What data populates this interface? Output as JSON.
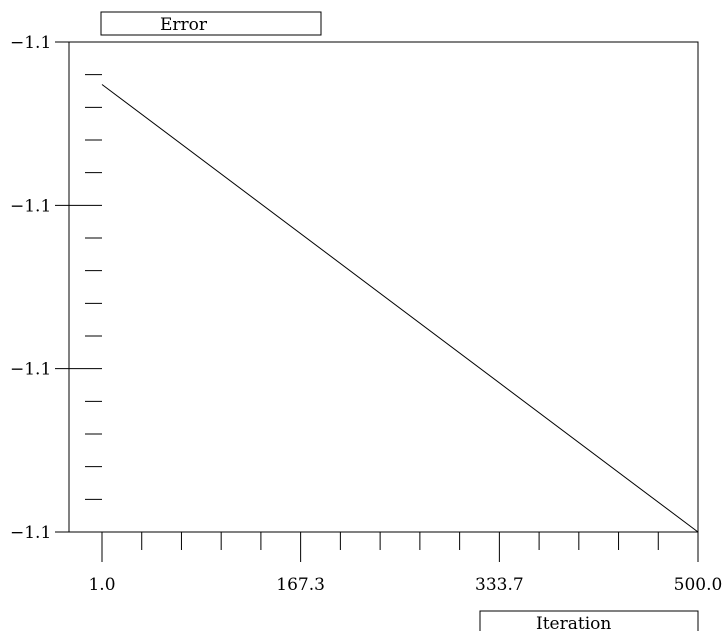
{
  "chart_data": {
    "type": "line",
    "ylabel": "Error",
    "xlabel": "Iteration",
    "x_ticks": [
      {
        "value": 1.0,
        "label": "1.0"
      },
      {
        "value": 167.3,
        "label": "167.3"
      },
      {
        "value": 333.7,
        "label": "333.7"
      },
      {
        "value": 500.0,
        "label": "500.0"
      }
    ],
    "y_ticks": [
      {
        "value": 3,
        "label": "−1.1"
      },
      {
        "value": 2,
        "label": "−1.1"
      },
      {
        "value": 1,
        "label": "−1.1"
      },
      {
        "value": 0,
        "label": "−1.1"
      }
    ],
    "xlim": [
      1.0,
      500.0
    ],
    "ylim": [
      0,
      3
    ],
    "grid": false,
    "series": [
      {
        "x": [
          1.0,
          500.0
        ],
        "y": [
          2.74,
          0.0
        ]
      }
    ]
  }
}
